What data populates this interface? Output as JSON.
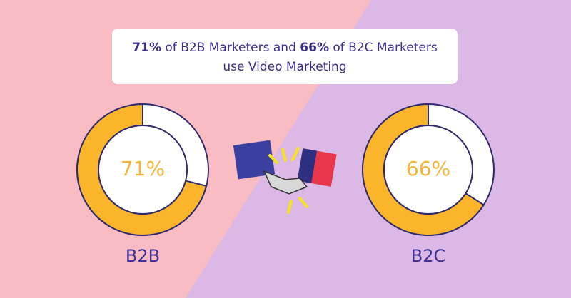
{
  "header": {
    "title": [
      "71%",
      " of B2B Marketers and ",
      "66%",
      " of B2C Marketers",
      "use Video Marketing"
    ]
  },
  "chart_data": [
    {
      "type": "donut",
      "label": "B2B",
      "values": [
        71
      ],
      "value_labels": [
        "71%"
      ],
      "color": "#fbb52b"
    },
    {
      "type": "donut",
      "label": "B2C",
      "values": [
        66
      ],
      "value_labels": [
        "66%"
      ],
      "color": "#fbb52b"
    }
  ]
}
